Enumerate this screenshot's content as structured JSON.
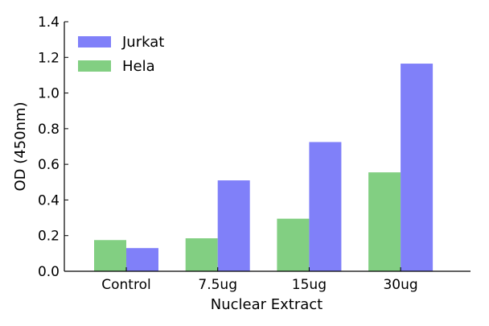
{
  "chart_data": {
    "type": "bar",
    "xlabel": "Nuclear Extract",
    "ylabel": "OD (450nm)",
    "categories": [
      "Control",
      "7.5ug",
      "15ug",
      "30ug"
    ],
    "ylim": [
      0,
      1.4
    ],
    "yticks": [
      "0.0",
      "0.2",
      "0.4",
      "0.6",
      "0.8",
      "1.0",
      "1.2",
      "1.4"
    ],
    "series": [
      {
        "name": "Hela",
        "values": [
          0.175,
          0.185,
          0.295,
          0.555
        ],
        "color": "#82cf82"
      },
      {
        "name": "Jurkat",
        "values": [
          0.13,
          0.51,
          0.725,
          1.165
        ],
        "color": "#8080f9"
      }
    ],
    "legend": {
      "placement": "top-left",
      "order": [
        "Jurkat",
        "Hela"
      ]
    },
    "grid": false
  }
}
